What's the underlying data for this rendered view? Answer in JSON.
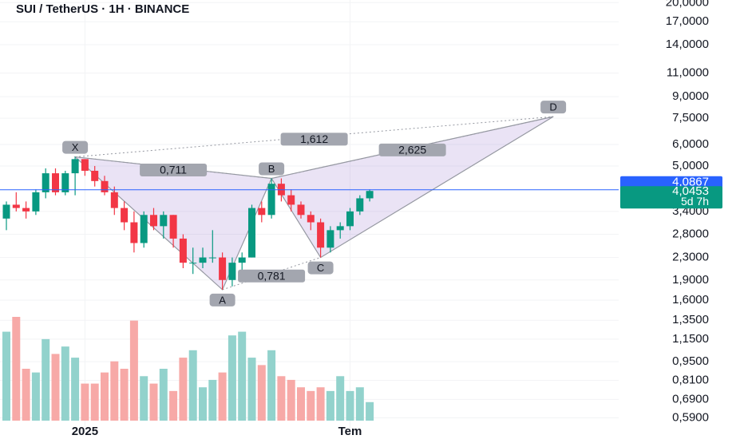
{
  "chart_data": {
    "type": "candlestick",
    "title": "SUI / TetherUS · 1H · BINANCE",
    "log_scale": true,
    "grid": true,
    "ylim": [
      0.5274,
      20.45
    ],
    "yticks": [
      {
        "value": 20,
        "label": "20,0000"
      },
      {
        "value": 17,
        "label": "17,0000"
      },
      {
        "value": 14,
        "label": "14,0000"
      },
      {
        "value": 11,
        "label": "11,0000"
      },
      {
        "value": 9,
        "label": "9,0000"
      },
      {
        "value": 7.5,
        "label": "7,5000"
      },
      {
        "value": 6,
        "label": "6,0000"
      },
      {
        "value": 5,
        "label": "5,0000"
      },
      {
        "value": 3.4,
        "label": "3,4000"
      },
      {
        "value": 2.8,
        "label": "2,8000"
      },
      {
        "value": 2.3,
        "label": "2,3000"
      },
      {
        "value": 1.9,
        "label": "1,9000"
      },
      {
        "value": 1.6,
        "label": "1,6000"
      },
      {
        "value": 1.35,
        "label": "1,3500"
      },
      {
        "value": 1.15,
        "label": "1,1500"
      },
      {
        "value": 0.95,
        "label": "0,9500"
      },
      {
        "value": 0.81,
        "label": "0,8100"
      },
      {
        "value": 0.69,
        "label": "0,6900"
      },
      {
        "value": 0.59,
        "label": "0,5900"
      }
    ],
    "categories": [
      null,
      null,
      null,
      null,
      null,
      null,
      null,
      null,
      "2025",
      null,
      null,
      null,
      null,
      null,
      null,
      null,
      null,
      null,
      null,
      null,
      null,
      null,
      null,
      null,
      null,
      null,
      null,
      null,
      null,
      null,
      null,
      null,
      null,
      null,
      null,
      "Tem",
      null,
      null
    ],
    "open": [
      3.2,
      3.6,
      3.5,
      3.4,
      4.0,
      4.7,
      4.0,
      4.7,
      5.3,
      4.8,
      4.4,
      4.0,
      3.5,
      3.1,
      2.6,
      3.3,
      3.0,
      3.3,
      2.7,
      2.2,
      2.2,
      2.3,
      2.3,
      1.9,
      2.2,
      2.3,
      3.5,
      3.3,
      4.3,
      3.9,
      3.6,
      3.3,
      3.1,
      2.5,
      2.9,
      3.0,
      3.4,
      3.8
    ],
    "high": [
      3.7,
      4.0,
      3.7,
      4.1,
      4.9,
      4.9,
      4.8,
      5.4,
      5.3,
      5.0,
      4.6,
      4.2,
      3.7,
      3.4,
      3.4,
      3.5,
      3.4,
      3.3,
      2.8,
      2.5,
      2.5,
      2.9,
      2.4,
      2.3,
      2.4,
      3.6,
      3.7,
      4.5,
      4.5,
      4.1,
      3.7,
      3.4,
      3.2,
      3.0,
      3.1,
      3.5,
      3.9,
      4.1
    ],
    "low": [
      2.9,
      3.4,
      3.2,
      3.3,
      3.8,
      3.9,
      3.9,
      3.9,
      4.6,
      4.2,
      3.9,
      3.3,
      2.9,
      2.4,
      2.5,
      2.9,
      2.7,
      2.5,
      2.1,
      2.0,
      2.1,
      2.2,
      1.75,
      1.8,
      2.0,
      2.3,
      3.1,
      3.2,
      3.7,
      3.4,
      3.2,
      2.9,
      2.3,
      2.4,
      2.7,
      2.9,
      3.3,
      3.7
    ],
    "close": [
      3.6,
      3.5,
      3.4,
      4.0,
      4.7,
      4.0,
      4.7,
      5.3,
      4.8,
      4.4,
      4.0,
      3.5,
      3.1,
      2.6,
      3.3,
      3.0,
      3.3,
      2.7,
      2.2,
      2.2,
      2.3,
      2.3,
      1.9,
      2.2,
      2.3,
      3.5,
      3.3,
      4.3,
      3.9,
      3.6,
      3.3,
      3.1,
      2.5,
      2.9,
      3.0,
      3.4,
      3.8,
      4.0453
    ],
    "volume": [
      120,
      140,
      70,
      65,
      110,
      90,
      100,
      85,
      50,
      50,
      65,
      80,
      70,
      135,
      60,
      50,
      70,
      40,
      85,
      95,
      45,
      55,
      65,
      115,
      120,
      85,
      75,
      95,
      60,
      55,
      45,
      40,
      45,
      40,
      60,
      40,
      45,
      25
    ],
    "up_color": "#089981",
    "down_color": "#f23645",
    "volume_up_color": "#92d2cc",
    "volume_down_color": "#f7a9a7",
    "line_price": {
      "value": 4.0867,
      "label": "4,0867",
      "color": "#2962ff"
    },
    "last_price": {
      "value": 4.0453,
      "label": "4,0453"
    },
    "countdown": "5d 7h",
    "pattern": {
      "points": [
        {
          "label": "X",
          "x": 7,
          "price": 5.4
        },
        {
          "label": "A",
          "x": 22,
          "price": 1.75
        },
        {
          "label": "B",
          "x": 27,
          "price": 4.5
        },
        {
          "label": "C",
          "x": 32,
          "price": 2.3
        },
        {
          "label": "D",
          "x": 55.7,
          "price": 7.6
        }
      ],
      "ratios": [
        {
          "label": "0,711",
          "from": 0,
          "to": 2
        },
        {
          "label": "0,781",
          "from": 1,
          "to": 3
        },
        {
          "label": "1,612",
          "from": 0,
          "to": 4
        },
        {
          "label": "2,625",
          "from": 2,
          "to": 4
        }
      ]
    }
  }
}
